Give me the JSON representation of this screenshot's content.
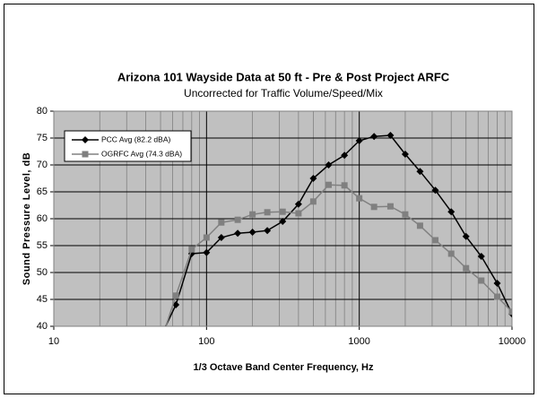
{
  "chart_data": {
    "type": "line",
    "title": "Arizona 101 Wayside Data at 50 ft - Pre & Post  Project ARFC",
    "subtitle": "Uncorrected for Traffic Volume/Speed/Mix",
    "x_label": "1/3 Octave Band Center Frequency, Hz",
    "y_label": "Sound Pressure Level, dB",
    "x": [
      50,
      63,
      80,
      100,
      125,
      160,
      200,
      250,
      315,
      400,
      500,
      630,
      800,
      1000,
      1250,
      1600,
      2000,
      2500,
      3150,
      4000,
      5000,
      6300,
      8000,
      10000
    ],
    "series": [
      {
        "name": "PCC Avg (82.2 dBA)",
        "color": "#000000",
        "marker": "diamond",
        "values": [
          38,
          44,
          53.5,
          53.7,
          56.5,
          57.3,
          57.5,
          57.8,
          59.5,
          62.7,
          67.5,
          70,
          71.8,
          74.5,
          75.3,
          75.5,
          72,
          68.8,
          65.3,
          61.3,
          56.7,
          53,
          48,
          42.3
        ]
      },
      {
        "name": "OGRFC Avg (74.3 dBA)",
        "color": "#808080",
        "marker": "square",
        "values": [
          37,
          45.7,
          54.3,
          56.5,
          59.3,
          59.8,
          60.8,
          61.2,
          61.3,
          61,
          63.2,
          66.3,
          66.2,
          63.8,
          62.2,
          62.3,
          60.8,
          58.7,
          56,
          53.5,
          50.8,
          48.5,
          45.5,
          42.7
        ]
      }
    ],
    "xscale": "log",
    "xlim": [
      10,
      10000
    ],
    "xticks": [
      10,
      100,
      1000,
      10000
    ],
    "ylim": [
      40,
      80
    ],
    "yticks": [
      40,
      45,
      50,
      55,
      60,
      65,
      70,
      75,
      80
    ],
    "grid": true,
    "plot_background": "#c0c0c0",
    "legend": "upper left"
  }
}
